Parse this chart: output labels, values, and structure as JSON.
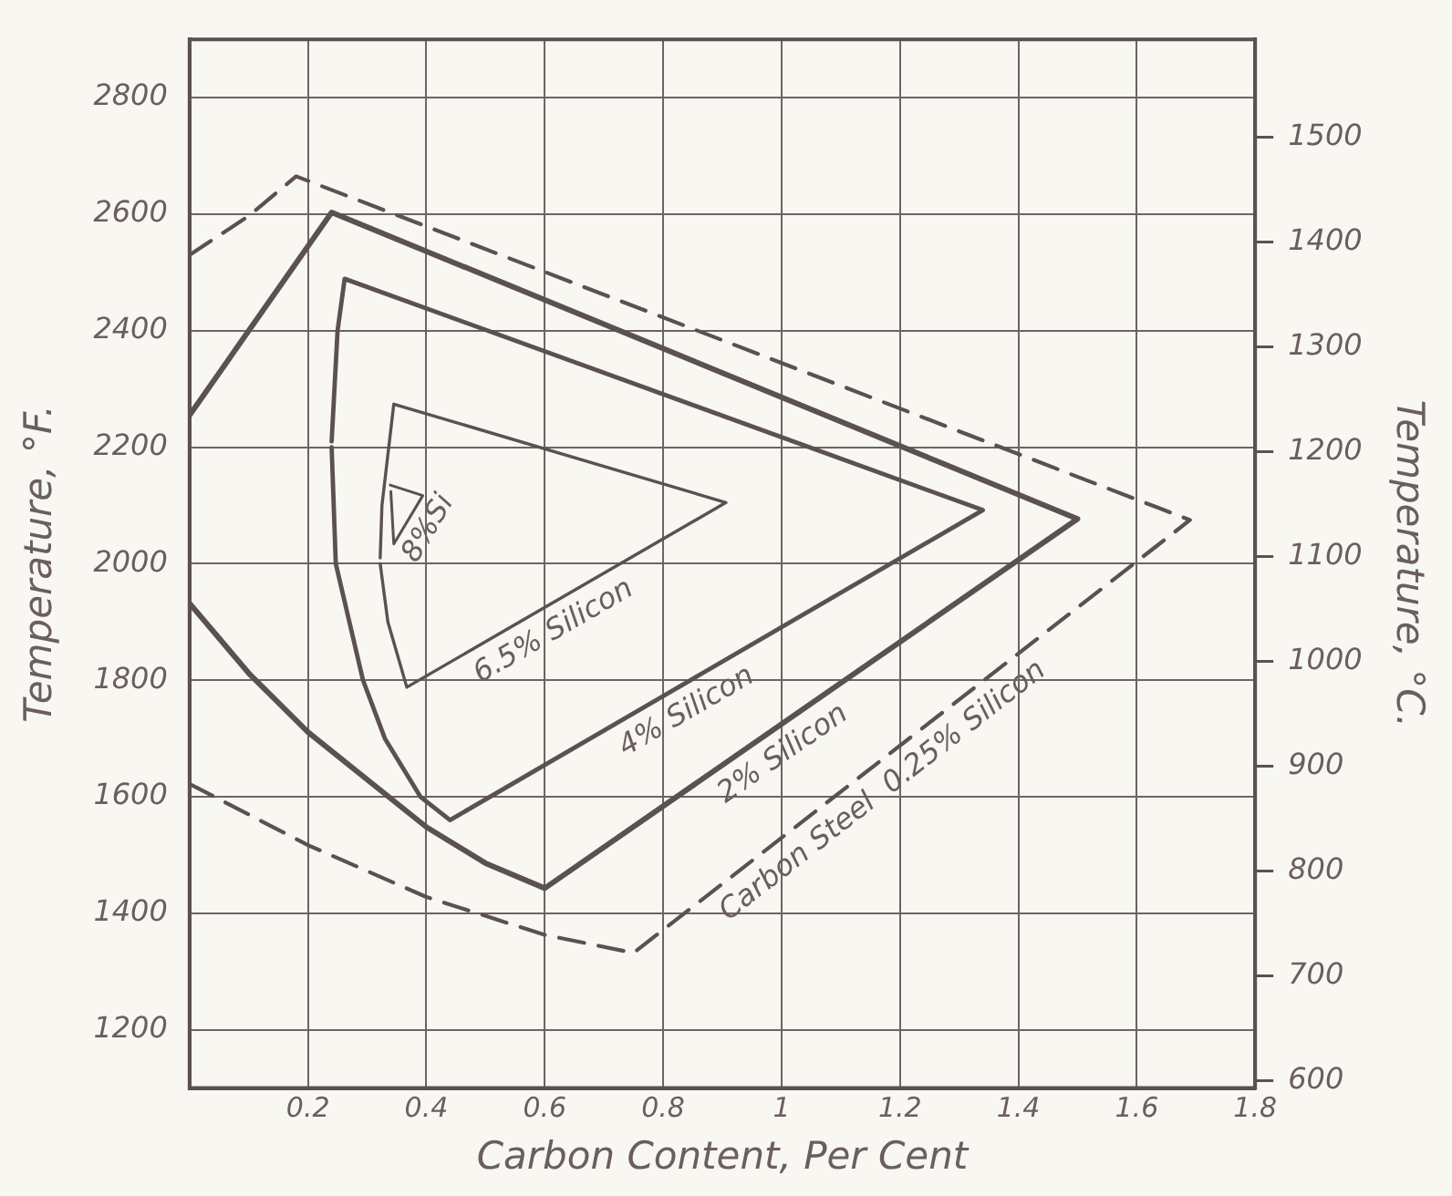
{
  "chart_data": {
    "type": "line",
    "xlabel": "Carbon Content, Per Cent",
    "ylabel": "Temperature, °F.",
    "y2label": "Temperature, °C.",
    "xlim": [
      0,
      1.8
    ],
    "xticks": [
      0.2,
      0.4,
      0.6,
      0.8,
      1.0,
      1.2,
      1.4,
      1.6,
      1.8
    ],
    "ylim": [
      1100,
      2900
    ],
    "yticks": [
      1200,
      1400,
      1600,
      1800,
      2000,
      2200,
      2400,
      2600,
      2800
    ],
    "y2lim": [
      593.3,
      1593.3
    ],
    "y2ticks": [
      600,
      700,
      800,
      900,
      1000,
      1100,
      1200,
      1300,
      1400,
      1500
    ],
    "grid": true,
    "legend": false,
    "marker": "none",
    "series": [
      {
        "name": "Carbon Steel  0.25% Silicon",
        "color": "#5b5151",
        "line_style": "dashed",
        "x": [
          0,
          0.1,
          0.18,
          1.69,
          0.75,
          0.6,
          0.4,
          0.2,
          0
        ],
        "values": [
          2530,
          2597,
          2665,
          2075,
          1332,
          1363,
          1428,
          1517,
          1622
        ]
      },
      {
        "name": "2% Silicon",
        "color": "#5b5151",
        "line_style": "solid",
        "x": [
          0,
          0.24,
          1.5,
          0.6,
          0.5,
          0.4,
          0.2,
          0.1,
          0
        ],
        "values": [
          2255,
          2603,
          2077,
          1443,
          1486,
          1548,
          1711,
          1812,
          1932
        ]
      },
      {
        "name": "4% Silicon",
        "color": "#5b5151",
        "line_style": "solid",
        "x": [
          0.24,
          0.247,
          0.293,
          0.33,
          0.39,
          0.44,
          1.34,
          0.262,
          0.25,
          0.24
        ],
        "values": [
          2200,
          2000,
          1800,
          1700,
          1600,
          1560,
          2092,
          2489,
          2400,
          2210
        ]
      },
      {
        "name": "6.5% Silicon",
        "color": "#5b5151",
        "line_style": "solid",
        "x": [
          0.322,
          0.335,
          0.367,
          0.906,
          0.345,
          0.325,
          0.322
        ],
        "values": [
          2000,
          1900,
          1788,
          2105,
          2274,
          2100,
          2010
        ]
      },
      {
        "name": "8%Si",
        "color": "#5b5151",
        "line_style": "solid",
        "x": [
          0.339,
          0.394,
          0.345,
          0.34
        ],
        "values": [
          2135,
          2117,
          2034,
          2124
        ]
      }
    ]
  }
}
